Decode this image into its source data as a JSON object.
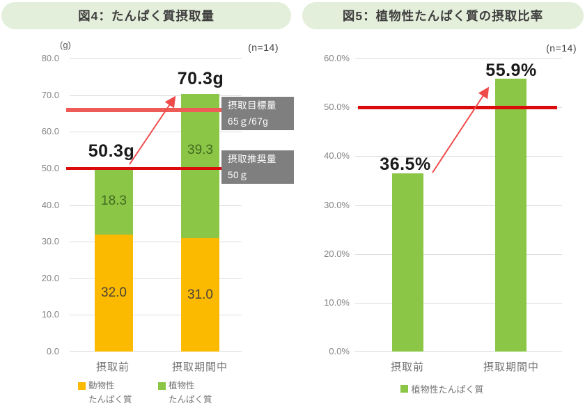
{
  "ui": {
    "background": "#FFFFFF",
    "pill_bg": "#E4EFDB",
    "annotation_bg": "#7F7F7F",
    "grid_color": "#DCDCDC",
    "arrow_color": "#EF4B4B"
  },
  "chart_data": [
    {
      "type": "bar",
      "stacked": true,
      "title": "図4：たんぱく質摂取量",
      "unit": "(g)",
      "sample_label": "(n=14)",
      "categories": [
        "摂取前",
        "摂取期間中"
      ],
      "series": [
        {
          "name": "動物性たんぱく質",
          "legend_lines": [
            "動物性",
            "たんぱく質"
          ],
          "color": "#FBB900",
          "values": [
            32.0,
            31.0
          ],
          "data_labels": [
            "32.0",
            "31.0"
          ]
        },
        {
          "name": "植物性たんぱく質",
          "legend_lines": [
            "植物性",
            "たんぱく質"
          ],
          "color": "#8CC646",
          "values": [
            18.3,
            39.3
          ],
          "data_labels": [
            "18.3",
            "39.3"
          ]
        }
      ],
      "totals": [
        "50.3g",
        "70.3g"
      ],
      "ylim": [
        0,
        80
      ],
      "ytick_labels": [
        "80.0",
        "70.0",
        "60.0",
        "50.0",
        "40.0",
        "30.0",
        "20.0",
        "10.0",
        "0.0"
      ],
      "reference_lines": [
        {
          "value": 66,
          "color": "#EF5B56",
          "label_lines": [
            "摂取目標量",
            "65ｇ/67g"
          ]
        },
        {
          "value": 50,
          "color": "#DB0B0B",
          "label_lines": [
            "摂取推奨量",
            "50ｇ"
          ]
        }
      ],
      "grid": true,
      "legend_position": "bottom"
    },
    {
      "type": "bar",
      "stacked": false,
      "title": "図5：植物性たんぱく質の摂取比率",
      "sample_label": "(n=14)",
      "categories": [
        "摂取前",
        "摂取期間中"
      ],
      "series": [
        {
          "name": "植物性たんぱく質",
          "color": "#8CC646",
          "values": [
            36.5,
            55.9
          ],
          "data_labels": [
            "36.5%",
            "55.9%"
          ]
        }
      ],
      "ylim": [
        0,
        60
      ],
      "ytick_labels": [
        "60.0%",
        "50.0%",
        "40.0%",
        "30.0%",
        "20.0%",
        "10.0%",
        "0.0%"
      ],
      "reference_lines": [
        {
          "value": 50,
          "color": "#DB0B0B"
        }
      ],
      "grid": true,
      "legend_position": "bottom"
    }
  ]
}
